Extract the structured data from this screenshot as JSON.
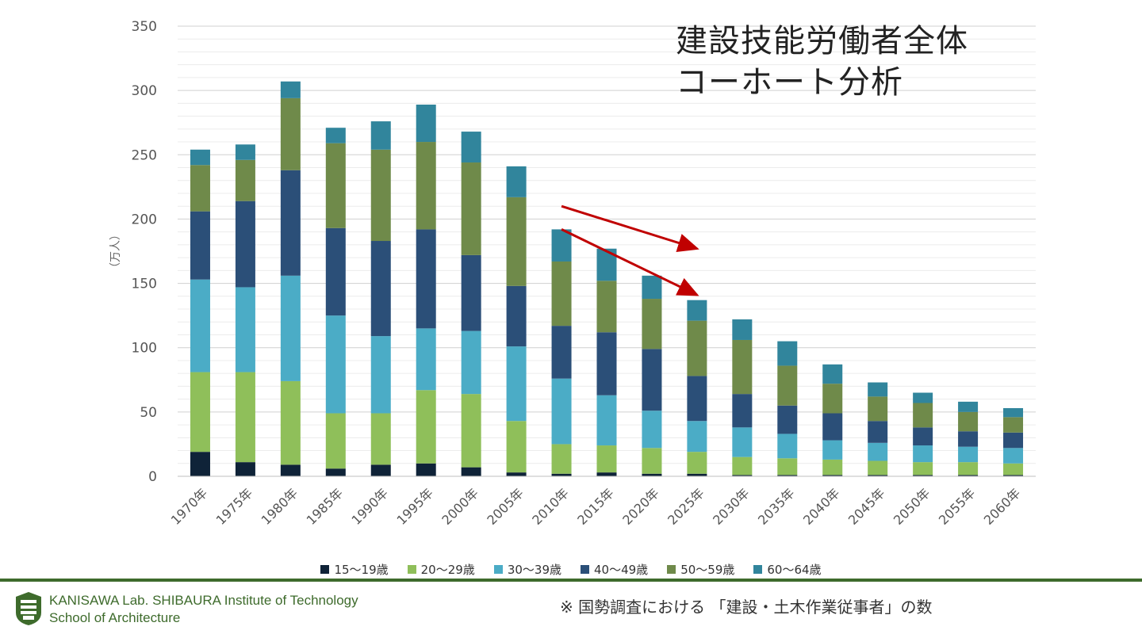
{
  "slide": {
    "title_line1": "建設技能労働者全体",
    "title_line2": "コーホート分析"
  },
  "footer": {
    "lab_line1": "KANISAWA Lab. SHIBAURA Institute of  Technology",
    "lab_line2": "School of Architecture",
    "note": "※ 国勢調査における 「建設・土木作業従事者」の数"
  },
  "colors": {
    "s15_19": "#0f2338",
    "s20_29": "#8fbf5a",
    "s30_39": "#4bacc6",
    "s40_49": "#2b4f78",
    "s50_59": "#6f8a4a",
    "s60_64": "#31859c",
    "arrow": "#c00000",
    "footer_green": "#3e6b2c"
  },
  "chart_data": {
    "type": "bar",
    "stacked": true,
    "ylabel": "（万人）",
    "xlabel": "",
    "ylim": [
      0,
      350
    ],
    "yticks": [
      0,
      50,
      100,
      150,
      200,
      250,
      300,
      350
    ],
    "grid": true,
    "legend_position": "bottom",
    "categories": [
      "1970年",
      "1975年",
      "1980年",
      "1985年",
      "1990年",
      "1995年",
      "2000年",
      "2005年",
      "2010年",
      "2015年",
      "2020年",
      "2025年",
      "2030年",
      "2035年",
      "2040年",
      "2045年",
      "2050年",
      "2055年",
      "2060年"
    ],
    "series": [
      {
        "name": "15〜19歳",
        "values": [
          19,
          11,
          9,
          6,
          9,
          10,
          7,
          3,
          2,
          3,
          2,
          2,
          1,
          1,
          1,
          1,
          1,
          1,
          1
        ]
      },
      {
        "name": "20〜29歳",
        "values": [
          62,
          70,
          65,
          43,
          40,
          57,
          57,
          40,
          23,
          21,
          20,
          17,
          14,
          13,
          12,
          11,
          10,
          10,
          9
        ]
      },
      {
        "name": "30〜39歳",
        "values": [
          72,
          66,
          82,
          76,
          60,
          48,
          49,
          58,
          51,
          39,
          29,
          24,
          23,
          19,
          15,
          14,
          13,
          12,
          12
        ]
      },
      {
        "name": "40〜49歳",
        "values": [
          53,
          67,
          82,
          68,
          74,
          77,
          59,
          47,
          41,
          49,
          48,
          35,
          26,
          22,
          21,
          17,
          14,
          12,
          12
        ]
      },
      {
        "name": "50〜59歳",
        "values": [
          36,
          32,
          56,
          66,
          71,
          68,
          72,
          69,
          50,
          40,
          39,
          43,
          42,
          31,
          23,
          19,
          19,
          15,
          12
        ]
      },
      {
        "name": "60〜64歳",
        "values": [
          12,
          12,
          13,
          12,
          22,
          29,
          24,
          24,
          25,
          25,
          18,
          16,
          16,
          19,
          15,
          11,
          8,
          8,
          7
        ]
      }
    ],
    "annotations": [
      {
        "type": "arrow",
        "from": {
          "x": "2010年",
          "y": 210
        },
        "to": {
          "x": "2025年",
          "y": 177
        }
      },
      {
        "type": "arrow",
        "from": {
          "x": "2010年",
          "y": 192
        },
        "to": {
          "x": "2025年",
          "y": 141
        }
      }
    ]
  }
}
